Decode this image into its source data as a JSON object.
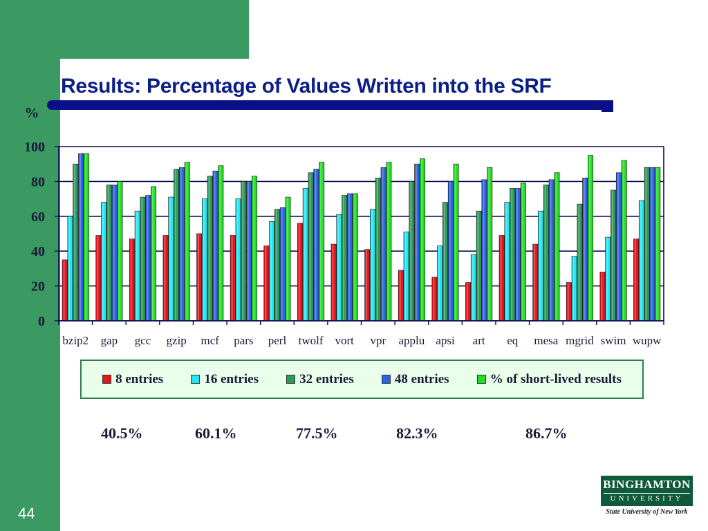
{
  "slide": {
    "title": "Results: Percentage of Values Written into the SRF",
    "page_number": "44"
  },
  "logo": {
    "name": "BINGHAMTON",
    "sub": "UNIVERSITY",
    "tagline": "State University of New York"
  },
  "percentages": [
    "40.5%",
    "60.1%",
    "77.5%",
    "82.3%",
    "86.7%"
  ],
  "chart_data": {
    "type": "bar",
    "title": "",
    "xlabel": "",
    "ylabel": "%",
    "ylim": [
      0,
      100
    ],
    "yticks": [
      0,
      20,
      40,
      60,
      80,
      100
    ],
    "grid": true,
    "legend_position": "bottom",
    "categories": [
      "bzip2",
      "gap",
      "gcc",
      "gzip",
      "mcf",
      "pars",
      "perl",
      "twolf",
      "vort",
      "vpr",
      "applu",
      "apsi",
      "art",
      "eq",
      "mesa",
      "mgrid",
      "swim",
      "wupw"
    ],
    "series": [
      {
        "name": "8 entries",
        "color": "#e8141c",
        "values": [
          35,
          49,
          47,
          49,
          50,
          49,
          43,
          56,
          44,
          41,
          29,
          25,
          22,
          49,
          44,
          22,
          28,
          47
        ]
      },
      {
        "name": "16 entries",
        "color": "#22e6f2",
        "values": [
          60,
          68,
          63,
          71,
          70,
          70,
          57,
          76,
          61,
          64,
          51,
          43,
          38,
          68,
          63,
          37,
          48,
          69
        ]
      },
      {
        "name": "32 entries",
        "color": "#2e9a58",
        "values": [
          90,
          78,
          71,
          87,
          83,
          80,
          64,
          85,
          72,
          82,
          80,
          68,
          63,
          76,
          78,
          67,
          75,
          88
        ]
      },
      {
        "name": "48 entries",
        "color": "#2f63e6",
        "values": [
          96,
          78,
          72,
          88,
          86,
          80,
          65,
          87,
          73,
          88,
          90,
          80,
          81,
          76,
          81,
          82,
          85,
          88
        ]
      },
      {
        "name": "% of short-lived results",
        "color": "#22e022",
        "values": [
          96,
          80,
          77,
          91,
          89,
          83,
          71,
          91,
          73,
          91,
          93,
          90,
          88,
          79,
          85,
          95,
          92,
          88
        ]
      }
    ]
  }
}
